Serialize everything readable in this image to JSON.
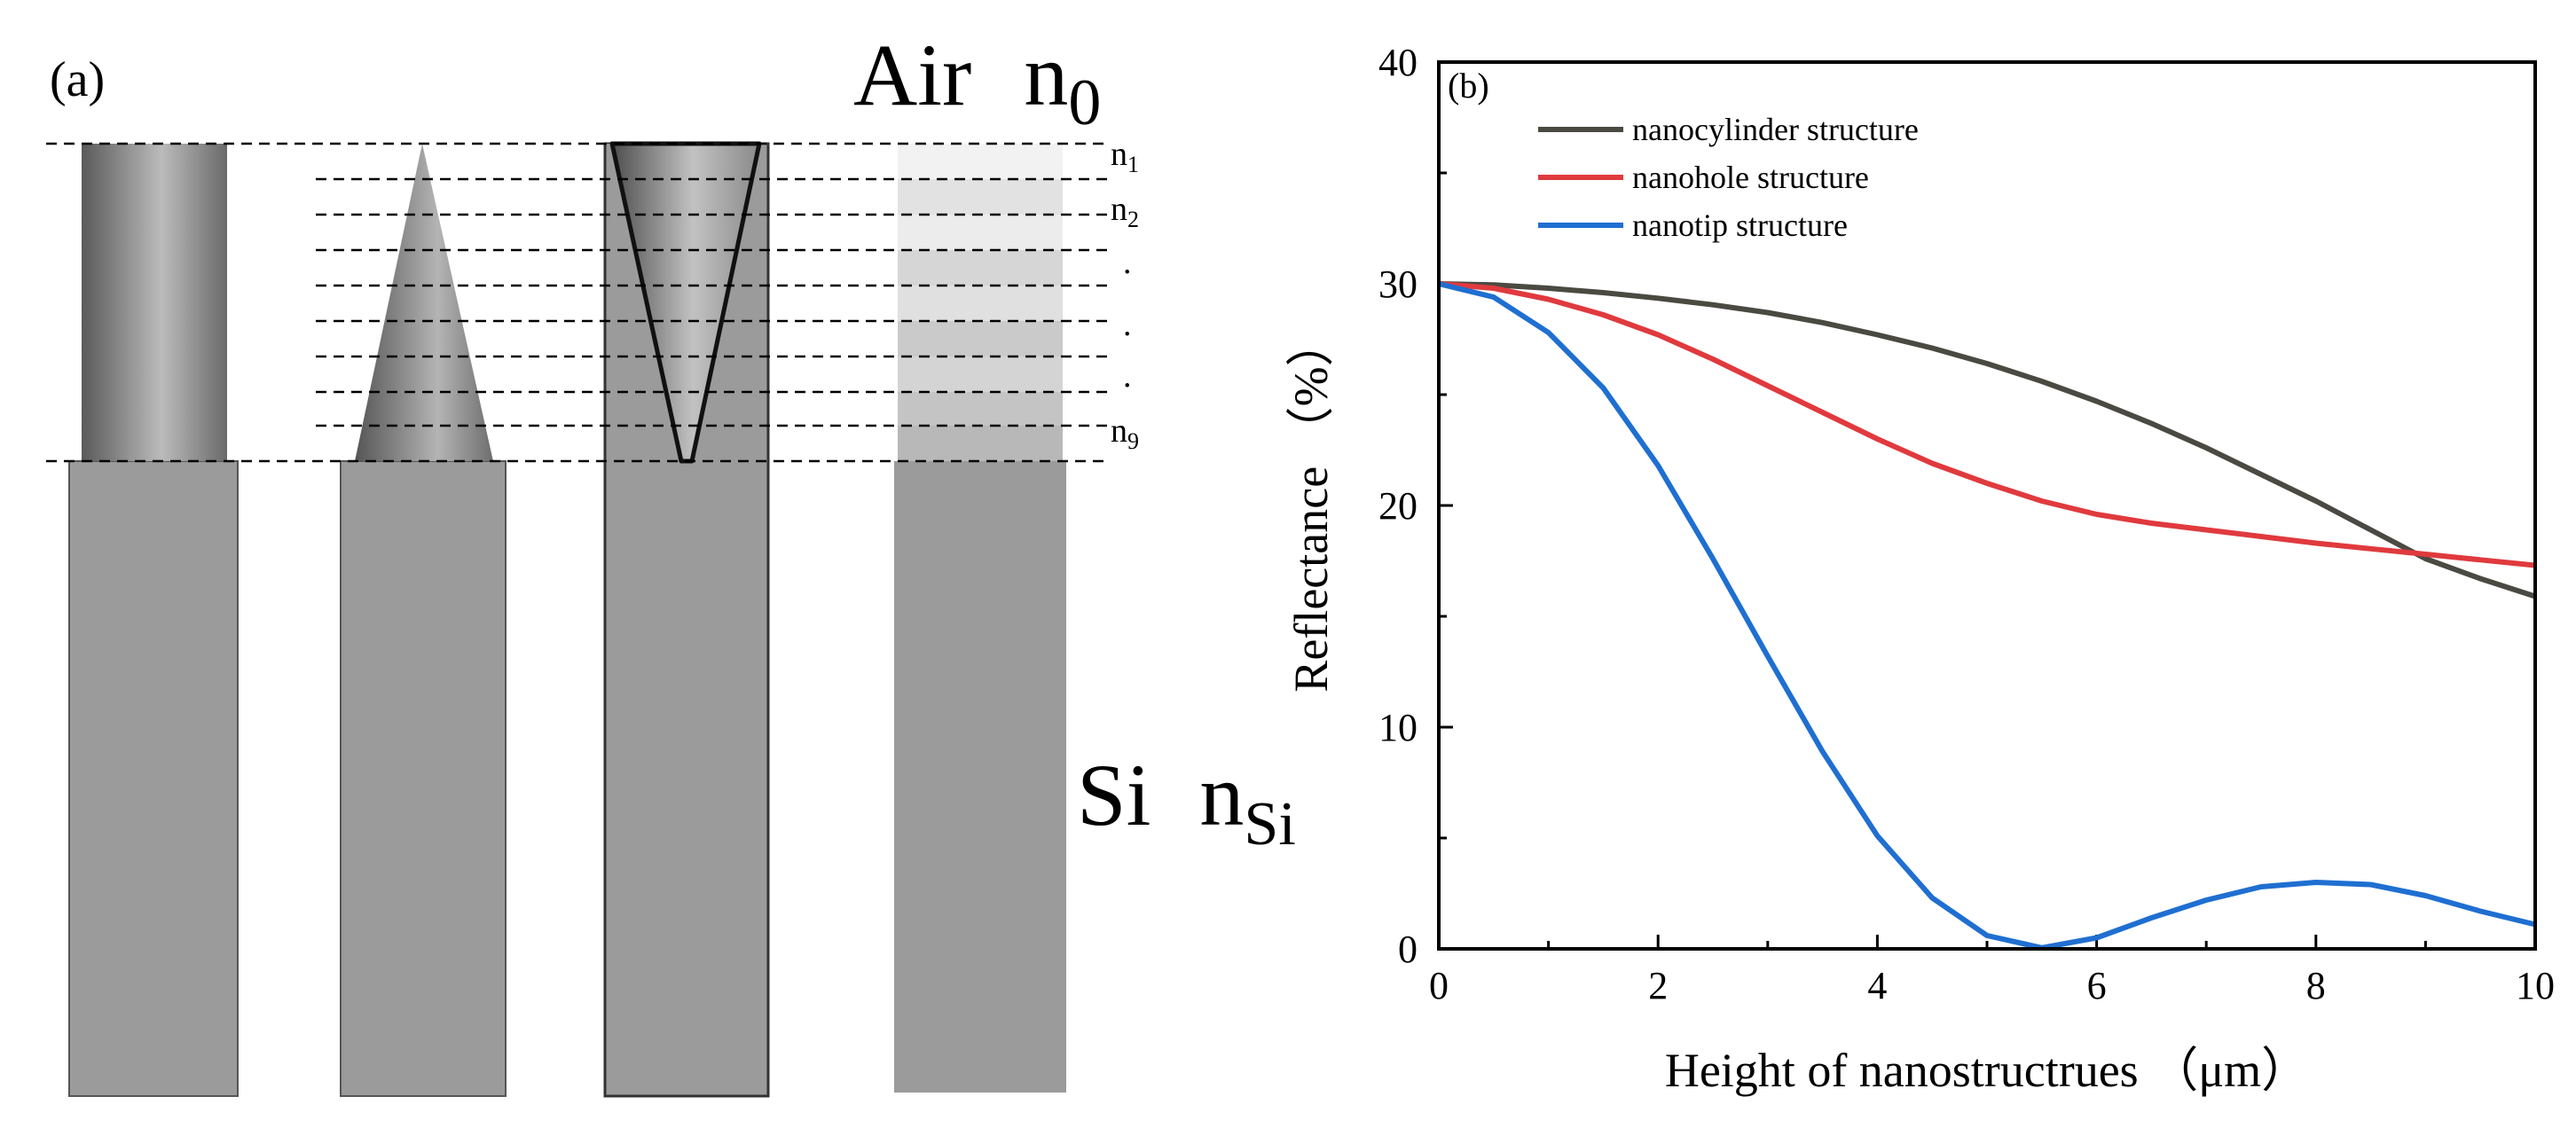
{
  "panel_a": {
    "label": "(a)",
    "air_label": "Air",
    "air_n": "n",
    "air_n_sub": "0",
    "si_label": "Si",
    "si_n": "n",
    "si_n_sub": "Si",
    "layer_labels": [
      {
        "base": "n",
        "sub": "1"
      },
      {
        "base": "n",
        "sub": "2"
      },
      {
        "base": ".",
        "sub": ""
      },
      {
        "base": ".",
        "sub": ""
      },
      {
        "base": ".",
        "sub": ""
      },
      {
        "base": "n",
        "sub": "9"
      }
    ],
    "colors": {
      "substrate": "#9b9b9b",
      "shade_dark": "#5e5e5e",
      "shade_light": "#bdbdbd"
    }
  },
  "chart_data": {
    "type": "line",
    "panel_label": "(b)",
    "title": "",
    "xlabel": "Height of nanostructrues  （μm）",
    "ylabel": "Reflectance  （%）",
    "xlim": [
      0,
      10
    ],
    "ylim": [
      0,
      40
    ],
    "xticks": [
      0,
      2,
      4,
      6,
      8,
      10
    ],
    "yticks": [
      0,
      10,
      20,
      30,
      40
    ],
    "legend_position": "top-left",
    "grid": false,
    "series": [
      {
        "name": "nanocylinder structure",
        "color": "#4a4a42",
        "x": [
          0,
          0.5,
          1,
          1.5,
          2,
          2.5,
          3,
          3.5,
          4,
          4.5,
          5,
          5.5,
          6,
          6.5,
          7,
          7.5,
          8,
          8.5,
          9,
          9.5,
          10
        ],
        "y": [
          30,
          29.95,
          29.8,
          29.6,
          29.35,
          29.05,
          28.7,
          28.25,
          27.7,
          27.1,
          26.4,
          25.6,
          24.7,
          23.7,
          22.6,
          21.4,
          20.2,
          18.9,
          17.6,
          16.7,
          15.9
        ]
      },
      {
        "name": "nanohole structure",
        "color": "#e03a3e",
        "x": [
          0,
          0.5,
          1,
          1.5,
          2,
          2.5,
          3,
          3.5,
          4,
          4.5,
          5,
          5.5,
          6,
          6.5,
          7,
          7.5,
          8,
          8.5,
          9,
          9.5,
          10
        ],
        "y": [
          30,
          29.8,
          29.3,
          28.6,
          27.7,
          26.6,
          25.4,
          24.2,
          23.0,
          21.9,
          21.0,
          20.2,
          19.6,
          19.2,
          18.9,
          18.6,
          18.3,
          18.05,
          17.8,
          17.55,
          17.3
        ]
      },
      {
        "name": "nanotip structure",
        "color": "#1f6fd1",
        "x": [
          0,
          0.5,
          1,
          1.5,
          2,
          2.5,
          3,
          3.5,
          4,
          4.5,
          5,
          5.5,
          6,
          6.5,
          7,
          7.5,
          8,
          8.5,
          9,
          9.5,
          10
        ],
        "y": [
          30,
          29.4,
          27.8,
          25.3,
          21.8,
          17.6,
          13.2,
          8.9,
          5.1,
          2.3,
          0.6,
          0.05,
          0.5,
          1.4,
          2.2,
          2.8,
          3.0,
          2.9,
          2.4,
          1.7,
          1.1
        ]
      }
    ]
  }
}
